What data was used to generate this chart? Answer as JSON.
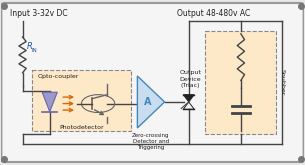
{
  "bg_color": "#e8e8e8",
  "inner_bg": "#f5f5f5",
  "border_color": "#999999",
  "title_input": "Input 3-32v DC",
  "title_output": "Output 48-480v AC",
  "opto_label": "Opto-coupler",
  "photo_label": "Photodetector",
  "rin_label": "R",
  "rin_sub": "IN",
  "amp_label": "A",
  "zero_label": "Zero-crossing\nDetector and\nTriggering",
  "output_device_label": "Output\nDevice\n(Triac)",
  "snubber_label": "Snubber",
  "opto_fill": "#fde8c8",
  "snubber_fill": "#fde8c8",
  "wire_color": "#444444",
  "resistor_color": "#444444",
  "led_fill": "#9999cc",
  "led_edge": "#6666aa",
  "arrow_color": "#dd6600",
  "transistor_color": "#666666",
  "amp_fill": "#c8ddf0",
  "amp_edge": "#4488bb",
  "text_color": "#222222",
  "blue_text": "#2255aa",
  "connector_color": "#777777",
  "triac_color": "#222222",
  "dashed_color": "#888888",
  "figw": 3.05,
  "figh": 1.65,
  "dpi": 100
}
